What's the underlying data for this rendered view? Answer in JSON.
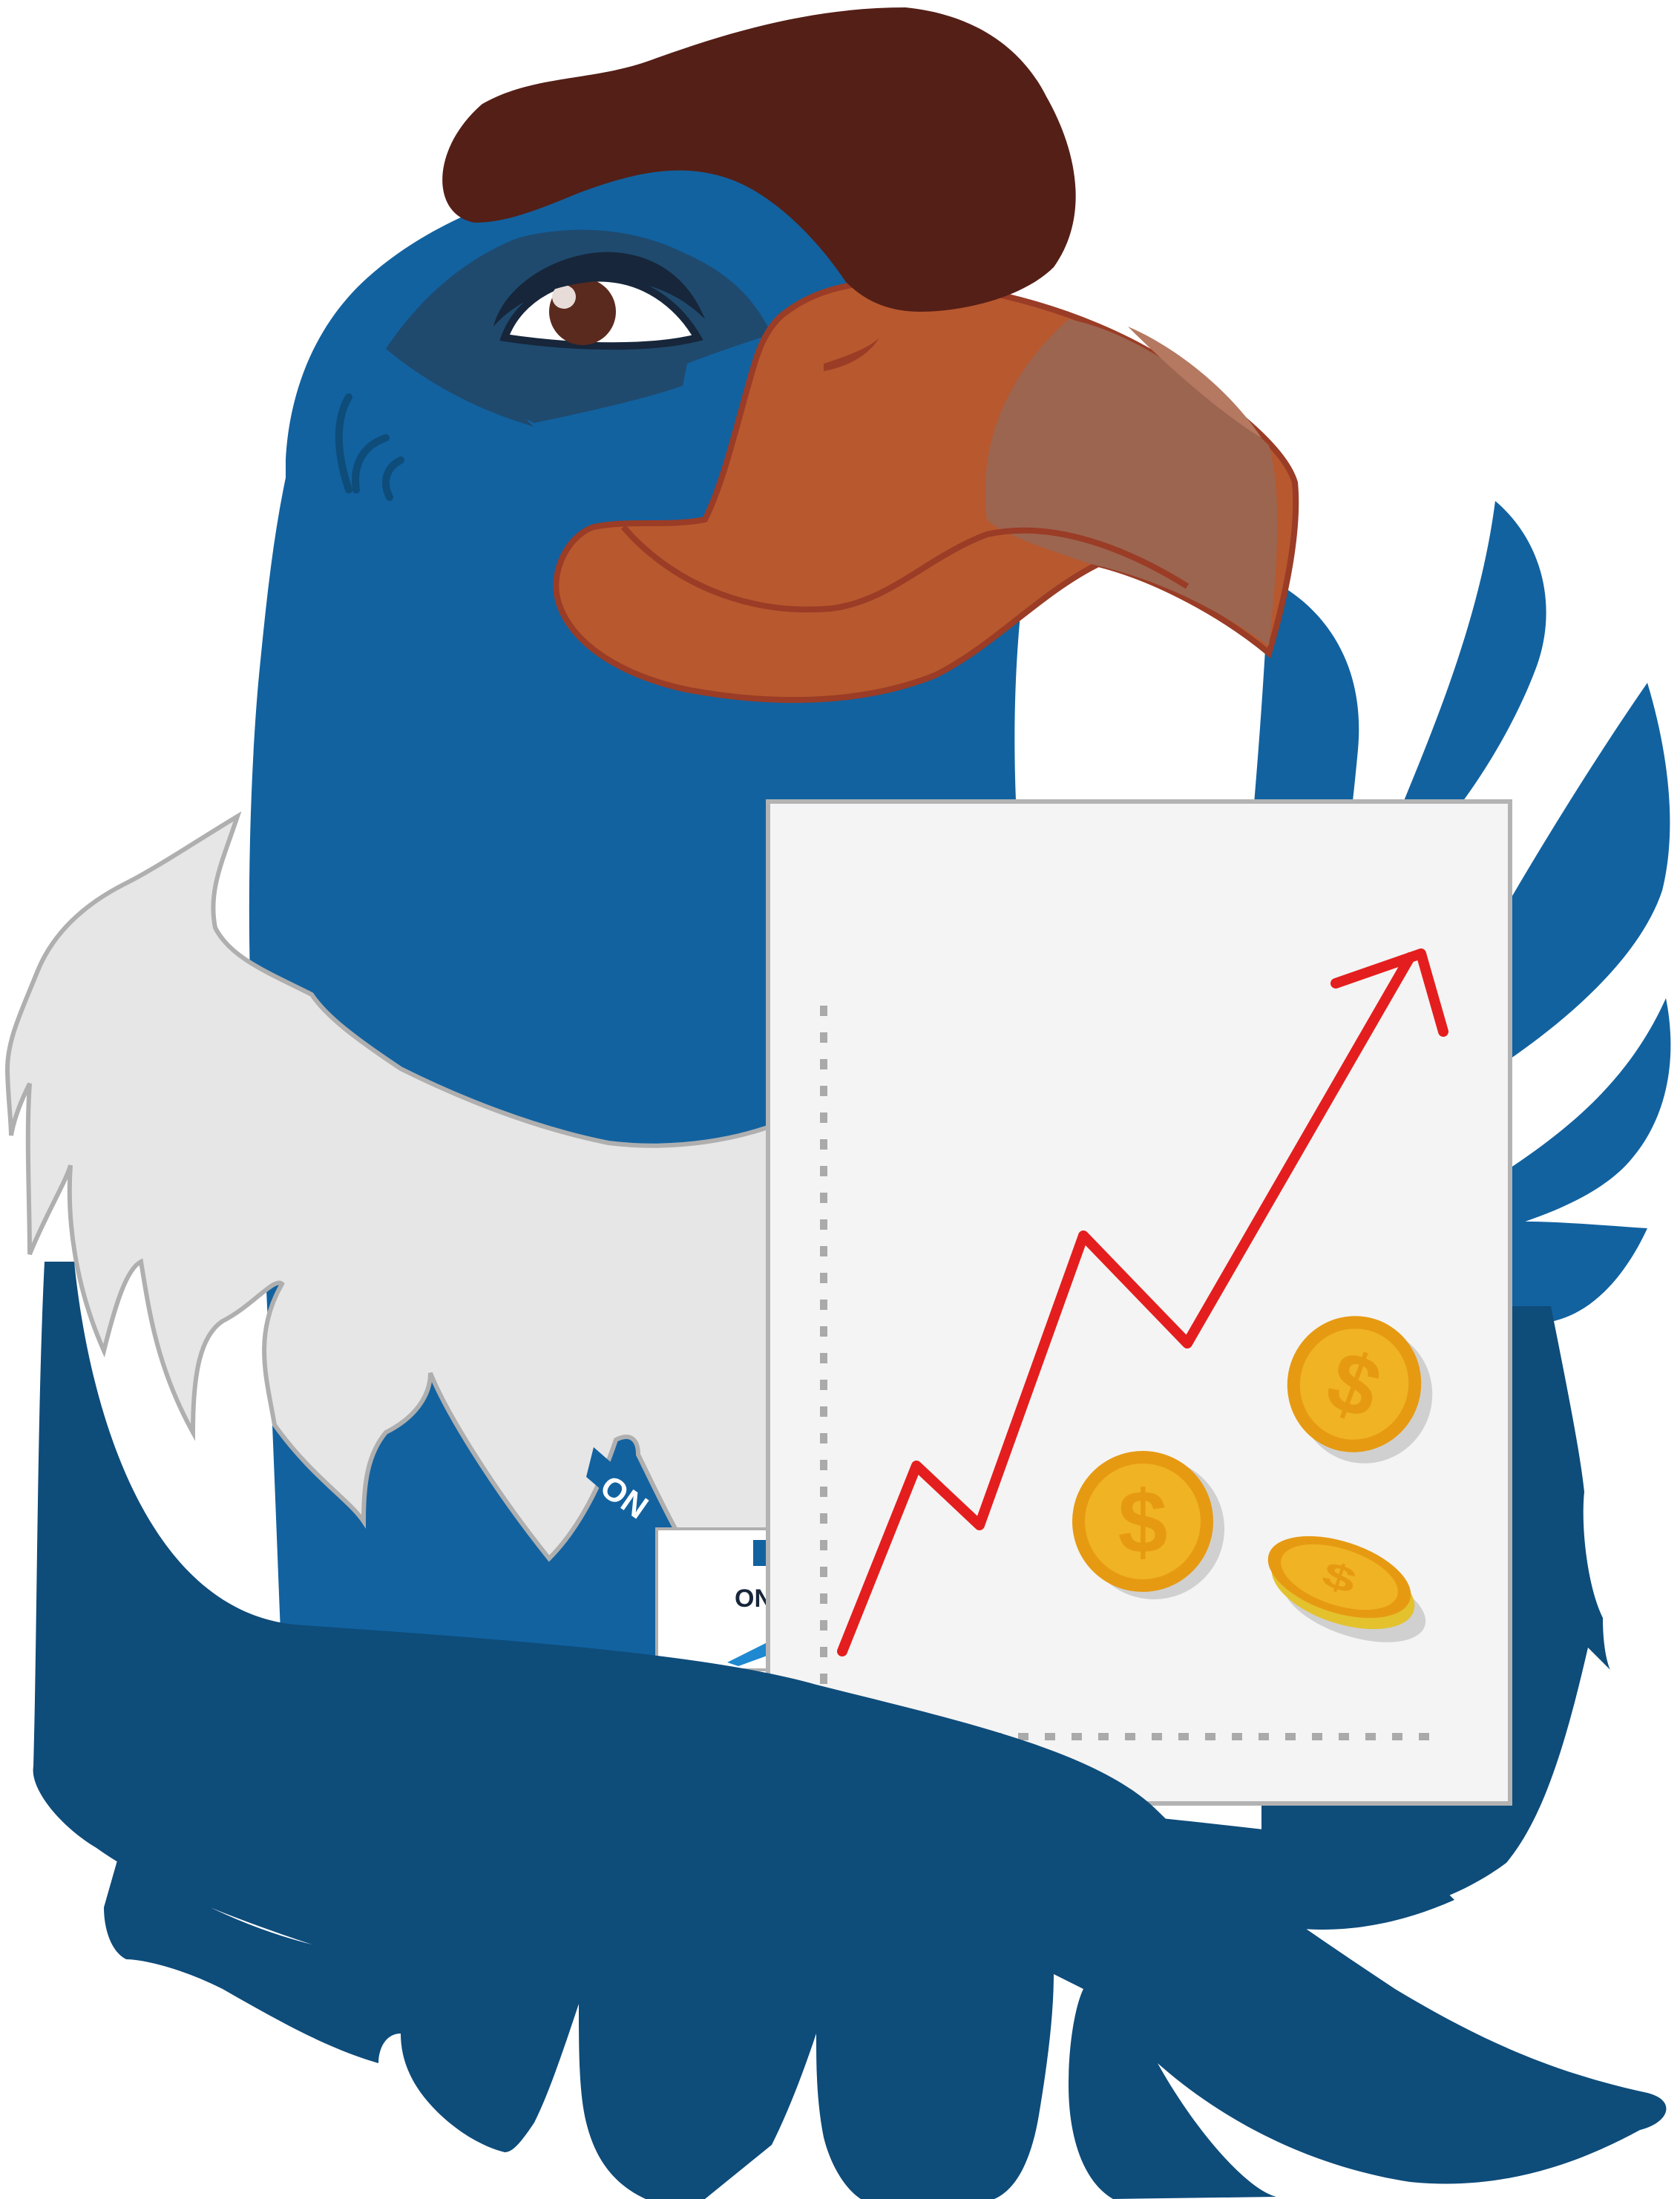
{
  "illustration": {
    "subject": "eagle-mascot-holding-growth-chart",
    "badge": {
      "text_fragment_1": "ON",
      "text_fragment_2": "ON"
    },
    "chart": {
      "trend": "upward",
      "coin_symbol": "$",
      "coin_count": 3
    }
  },
  "colors": {
    "background": "#ffffff",
    "body_blue": "#1262A0",
    "dark_blue": "#0E4C7A",
    "beak": "#B8582E",
    "beak_outline": "#9A3C26",
    "beak_tip": "#9C6550",
    "hat": "#541F17",
    "feather_white": "#E6E6E6",
    "feather_outline": "#AFAFAF",
    "paper": "#F4F4F4",
    "paper_border": "#B3B3B3",
    "trend_line": "#E41E1E",
    "coin": "#F0B323",
    "coin_edge": "#E69A12",
    "coin_shadow": "#D0D0D0",
    "dotted_axis": "#AAAAAA"
  }
}
